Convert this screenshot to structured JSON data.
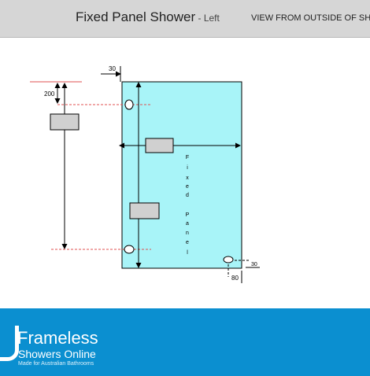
{
  "header": {
    "title": "Fixed Panel Shower",
    "separator": " - ",
    "side": "Left",
    "view_label": "VIEW FROM OUTSIDE OF SH"
  },
  "diagram": {
    "dim_top_offset": "30",
    "dim_top_gap": "200",
    "dim_bottom_height": "30",
    "dim_bottom_side": "80",
    "panel_label_letters": [
      "F",
      "i",
      "x",
      "e",
      "d",
      "",
      "P",
      "a",
      "n",
      "e",
      "l"
    ],
    "panel_color": "#a8f4f8",
    "guide_color": "#e05050"
  },
  "footer": {
    "brand": "Frameless",
    "subbrand": "Showers Online",
    "tagline": "Made for Australian Bathrooms",
    "color": "#0b8fd0"
  }
}
